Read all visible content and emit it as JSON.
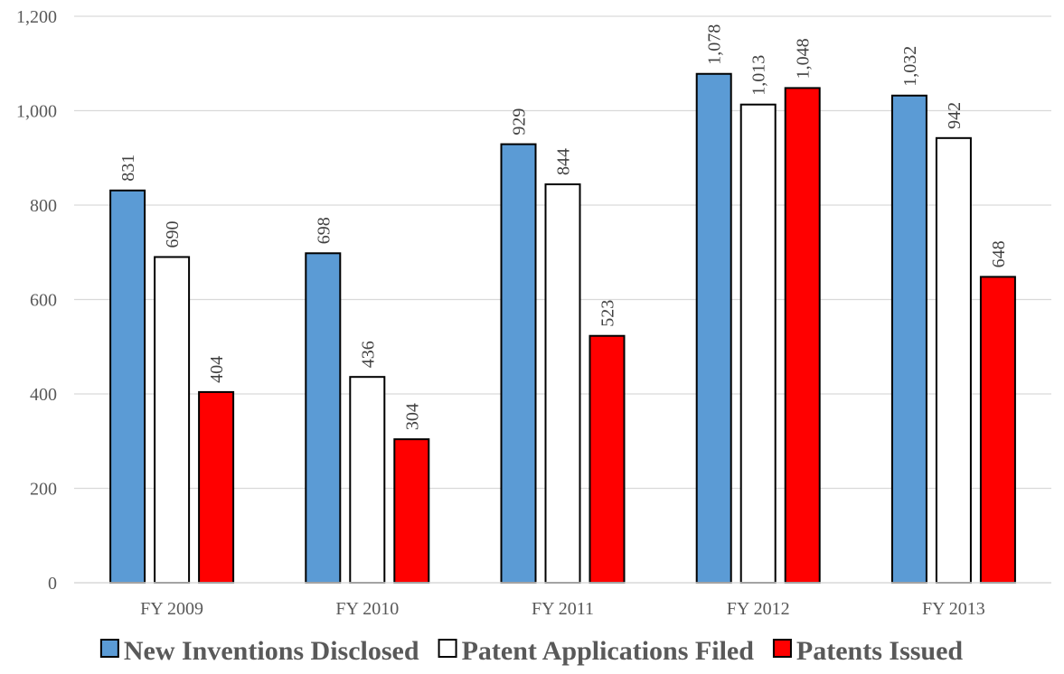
{
  "chart_data": {
    "type": "bar",
    "title": "",
    "xlabel": "",
    "ylabel": "",
    "categories": [
      "FY 2009",
      "FY 2010",
      "FY 2011",
      "FY 2012",
      "FY 2013"
    ],
    "series": [
      {
        "name": "New Inventions Disclosed",
        "color": "#5B9BD5",
        "values": [
          831,
          698,
          929,
          1078,
          1032
        ],
        "labels": [
          "831",
          "698",
          "929",
          "1,078",
          "1,032"
        ]
      },
      {
        "name": "Patent Applications Filed",
        "color": "#FFFFFF",
        "values": [
          690,
          436,
          844,
          1013,
          942
        ],
        "labels": [
          "690",
          "436",
          "844",
          "1,013",
          "942"
        ]
      },
      {
        "name": "Patents Issued",
        "color": "#FF0000",
        "values": [
          404,
          304,
          523,
          1048,
          648
        ],
        "labels": [
          "404",
          "304",
          "523",
          "1,048",
          "648"
        ]
      }
    ],
    "ylim": [
      0,
      1200
    ],
    "yticks": [
      0,
      200,
      400,
      600,
      800,
      1000,
      1200
    ],
    "ytick_labels": [
      "0",
      "200",
      "400",
      "600",
      "800",
      "1,000",
      "1,200"
    ],
    "grid": true,
    "legend_position": "bottom",
    "data_labels_rotated": true
  }
}
